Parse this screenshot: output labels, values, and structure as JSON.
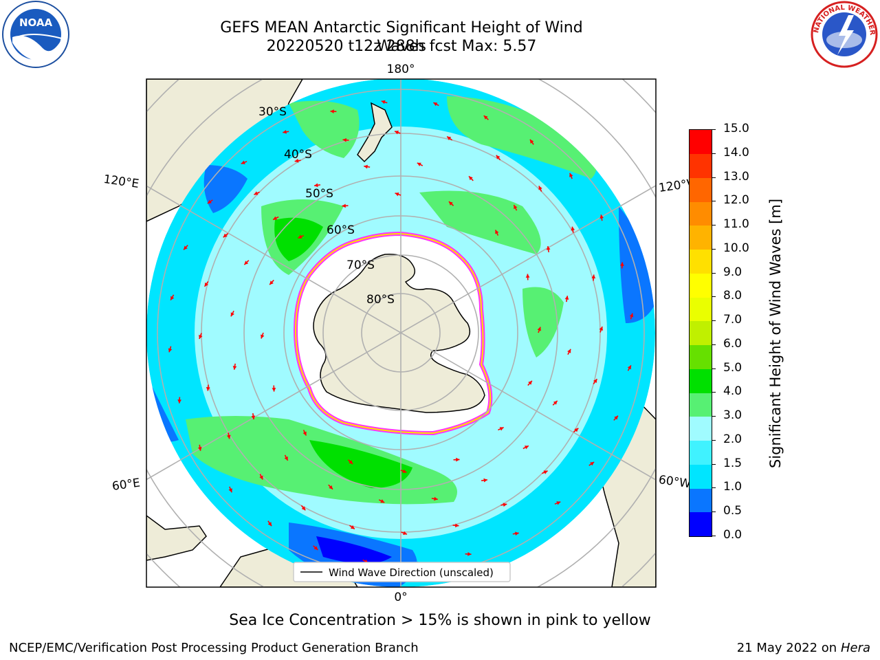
{
  "header": {
    "title_line1": "GEFS MEAN Antarctic Significant Height of Wind Waves",
    "title_line2": "20220520 t12z 288h fcst   Max: 5.57"
  },
  "logos": {
    "left": "NOAA",
    "right": "NATIONAL WEATHER SERVICE"
  },
  "map": {
    "lon_labels": {
      "top": "180°",
      "bottom": "0°",
      "upper_left": "120°E",
      "lower_left": "60°E",
      "upper_right": "120°W",
      "lower_right": "60°W"
    },
    "lat_labels": [
      "30°S",
      "40°S",
      "50°S",
      "60°S",
      "70°S",
      "80°S"
    ],
    "legend_label": "Wind Wave Direction (unscaled)",
    "arrow_color": "#ff0000",
    "land_color": "#eeecd8",
    "ice_edge_color": "#ff33ff"
  },
  "colorbar": {
    "label": "Significant Height of Wind Waves [m]",
    "ticks": [
      "0.0",
      "0.5",
      "1.0",
      "1.5",
      "2.0",
      "3.0",
      "4.0",
      "5.0",
      "6.0",
      "7.0",
      "8.0",
      "9.0",
      "10.0",
      "11.0",
      "12.0",
      "13.0",
      "14.0",
      "15.0"
    ],
    "colors": [
      "#0000ff",
      "#0a76ff",
      "#00e5ff",
      "#40f2ff",
      "#a0fbff",
      "#57f073",
      "#00e000",
      "#66e000",
      "#c0f000",
      "#eaff00",
      "#ffff00",
      "#ffe000",
      "#ffb300",
      "#ff8c00",
      "#ff6600",
      "#ff3300",
      "#ff0000"
    ]
  },
  "footer": {
    "note": "Sea Ice Concentration > 15% is shown in pink to yellow",
    "credit": "NCEP/EMC/Verification Post Processing Product Generation Branch",
    "date": "21 May 2022 on",
    "machine": "Hera"
  }
}
